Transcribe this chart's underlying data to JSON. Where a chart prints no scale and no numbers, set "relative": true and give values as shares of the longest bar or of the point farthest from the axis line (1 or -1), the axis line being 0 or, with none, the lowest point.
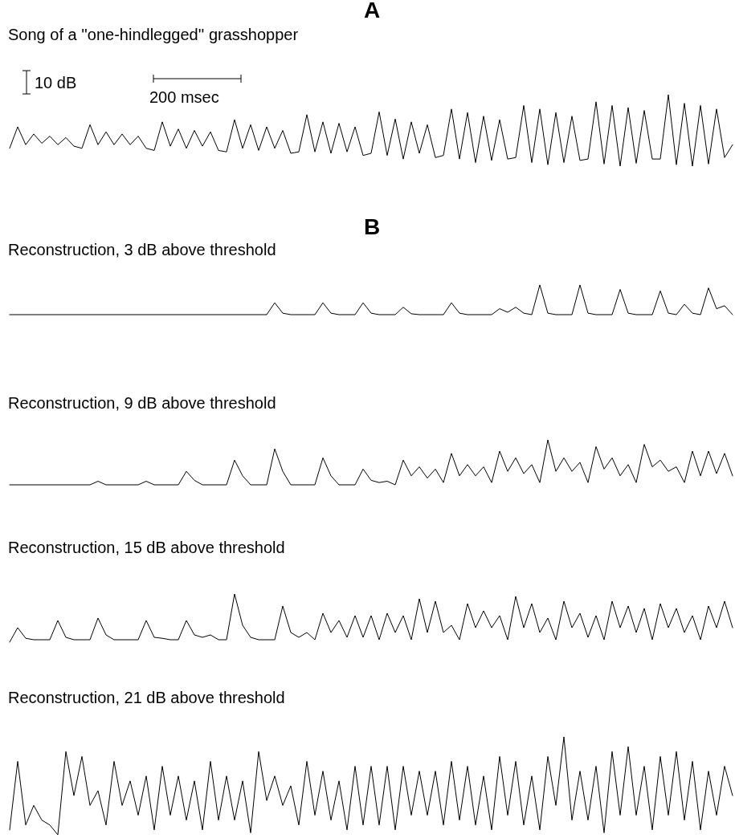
{
  "chart_data": [
    {
      "type": "line",
      "title": "A",
      "subtitle": "Song of a ''one-hindlegged'' grasshopper",
      "relative": true,
      "annotations": [
        "10 dB",
        "200 msec"
      ],
      "categories": [
        null,
        null,
        null,
        null,
        null,
        null,
        null,
        null,
        null,
        null,
        null,
        null,
        null,
        null,
        null,
        null,
        null,
        null,
        null,
        null,
        null,
        null,
        null,
        null,
        null,
        null,
        null,
        null,
        null,
        null,
        null,
        null,
        null,
        null,
        null,
        null,
        null,
        null,
        null,
        null,
        null,
        null,
        null,
        null,
        null,
        null,
        null,
        null,
        null,
        null,
        null,
        null,
        null,
        null,
        null,
        null,
        null,
        null,
        null,
        null,
        null,
        null,
        null,
        null,
        null,
        null,
        null,
        null,
        null,
        null,
        null,
        null,
        null,
        null,
        null,
        null,
        null,
        null,
        null,
        null,
        null,
        null,
        null,
        null,
        null,
        null,
        null,
        null,
        null,
        null,
        null
      ],
      "series": [
        {
          "color": "#000000",
          "values": [
            0.25,
            0.55,
            0.3,
            0.45,
            0.32,
            0.42,
            0.3,
            0.4,
            0.28,
            0.25,
            0.58,
            0.3,
            0.48,
            0.3,
            0.45,
            0.3,
            0.42,
            0.25,
            0.22,
            0.62,
            0.28,
            0.52,
            0.25,
            0.5,
            0.28,
            0.48,
            0.22,
            0.2,
            0.65,
            0.25,
            0.58,
            0.22,
            0.55,
            0.25,
            0.5,
            0.18,
            0.2,
            0.72,
            0.2,
            0.62,
            0.18,
            0.6,
            0.2,
            0.55,
            0.15,
            0.18,
            0.76,
            0.15,
            0.66,
            0.1,
            0.62,
            0.18,
            0.58,
            0.12,
            0.15,
            0.8,
            0.1,
            0.75,
            0.05,
            0.7,
            0.08,
            0.65,
            0.1,
            0.12,
            0.85,
            0.05,
            0.8,
            0.02,
            0.75,
            0.05,
            0.7,
            0.08,
            0.1,
            0.9,
            0.03,
            0.85,
            0.0,
            0.82,
            0.04,
            0.78,
            0.1,
            0.1,
            1.0,
            0.02,
            0.88,
            0.0,
            0.85,
            0.03,
            0.8,
            0.12,
            0.3
          ]
        }
      ]
    },
    {
      "type": "line",
      "title": "B",
      "subtitle": "Reconstruction, 3 dB above threshold",
      "relative": true,
      "categories": [
        null,
        null,
        null,
        null,
        null,
        null,
        null,
        null,
        null,
        null,
        null,
        null,
        null,
        null,
        null,
        null,
        null,
        null,
        null,
        null,
        null,
        null,
        null,
        null,
        null,
        null,
        null,
        null,
        null,
        null,
        null,
        null,
        null,
        null,
        null,
        null,
        null,
        null,
        null,
        null,
        null,
        null,
        null,
        null,
        null,
        null,
        null,
        null,
        null,
        null,
        null,
        null,
        null,
        null,
        null,
        null,
        null,
        null,
        null,
        null,
        null,
        null,
        null,
        null,
        null,
        null,
        null,
        null,
        null,
        null,
        null,
        null,
        null,
        null,
        null,
        null,
        null,
        null,
        null,
        null,
        null,
        null,
        null,
        null,
        null,
        null,
        null,
        null,
        null,
        null,
        null
      ],
      "series": [
        {
          "color": "#000000",
          "values": [
            0,
            0,
            0,
            0,
            0,
            0,
            0,
            0,
            0,
            0,
            0,
            0,
            0,
            0,
            0,
            0,
            0,
            0,
            0,
            0,
            0,
            0,
            0,
            0,
            0,
            0,
            0,
            0,
            0,
            0,
            0,
            0,
            0,
            0.4,
            0.05,
            0,
            0,
            0,
            0,
            0.4,
            0.05,
            0,
            0,
            0,
            0.4,
            0.05,
            0,
            0,
            0,
            0.25,
            0.03,
            0,
            0,
            0,
            0,
            0.4,
            0.05,
            0,
            0,
            0,
            0,
            0.2,
            0.08,
            0.25,
            0.05,
            0,
            1.0,
            0.05,
            0,
            0,
            0,
            1.0,
            0.05,
            0,
            0,
            0,
            0.85,
            0.05,
            0,
            0,
            0,
            0.8,
            0.05,
            0,
            0.35,
            0.05,
            0,
            0.9,
            0.2,
            0.3,
            0
          ]
        }
      ]
    },
    {
      "type": "line",
      "title": "Reconstruction, 9 dB above threshold",
      "relative": true,
      "categories": [
        null,
        null,
        null,
        null,
        null,
        null,
        null,
        null,
        null,
        null,
        null,
        null,
        null,
        null,
        null,
        null,
        null,
        null,
        null,
        null,
        null,
        null,
        null,
        null,
        null,
        null,
        null,
        null,
        null,
        null,
        null,
        null,
        null,
        null,
        null,
        null,
        null,
        null,
        null,
        null,
        null,
        null,
        null,
        null,
        null,
        null,
        null,
        null,
        null,
        null,
        null,
        null,
        null,
        null,
        null,
        null,
        null,
        null,
        null,
        null,
        null,
        null,
        null,
        null,
        null,
        null,
        null,
        null,
        null,
        null,
        null,
        null,
        null,
        null,
        null,
        null,
        null,
        null,
        null,
        null,
        null,
        null,
        null,
        null,
        null,
        null,
        null,
        null,
        null,
        null,
        null
      ],
      "series": [
        {
          "color": "#000000",
          "values": [
            0,
            0,
            0,
            0,
            0,
            0,
            0,
            0,
            0,
            0,
            0,
            0.08,
            0,
            0,
            0,
            0,
            0,
            0.08,
            0,
            0,
            0,
            0,
            0.3,
            0.1,
            0,
            0,
            0,
            0,
            0.55,
            0.2,
            0,
            0,
            0,
            0.8,
            0.3,
            0,
            0,
            0,
            0,
            0.6,
            0.2,
            0,
            0,
            0,
            0.35,
            0.1,
            0.05,
            0.08,
            0,
            0.55,
            0.2,
            0.4,
            0.15,
            0.35,
            0.05,
            0.7,
            0.2,
            0.45,
            0.2,
            0.4,
            0.05,
            0.75,
            0.3,
            0.6,
            0.25,
            0.45,
            0.05,
            1.0,
            0.3,
            0.6,
            0.3,
            0.5,
            0.05,
            0.85,
            0.35,
            0.6,
            0.2,
            0.45,
            0.05,
            0.9,
            0.4,
            0.55,
            0.3,
            0.4,
            0.05,
            0.75,
            0.2,
            0.75,
            0.25,
            0.7,
            0.2
          ]
        }
      ]
    },
    {
      "type": "line",
      "title": "Reconstruction, 15 dB above threshold",
      "relative": true,
      "categories": [
        null,
        null,
        null,
        null,
        null,
        null,
        null,
        null,
        null,
        null,
        null,
        null,
        null,
        null,
        null,
        null,
        null,
        null,
        null,
        null,
        null,
        null,
        null,
        null,
        null,
        null,
        null,
        null,
        null,
        null,
        null,
        null,
        null,
        null,
        null,
        null,
        null,
        null,
        null,
        null,
        null,
        null,
        null,
        null,
        null,
        null,
        null,
        null,
        null,
        null,
        null,
        null,
        null,
        null,
        null,
        null,
        null,
        null,
        null,
        null,
        null,
        null,
        null,
        null,
        null,
        null,
        null,
        null,
        null,
        null,
        null,
        null,
        null,
        null,
        null,
        null,
        null,
        null,
        null,
        null,
        null,
        null,
        null,
        null,
        null,
        null,
        null,
        null,
        null,
        null,
        null
      ],
      "series": [
        {
          "color": "#000000",
          "values": [
            0,
            0.3,
            0.08,
            0.05,
            0.05,
            0.05,
            0.45,
            0.1,
            0.05,
            0.05,
            0.05,
            0.5,
            0.15,
            0.05,
            0.05,
            0.05,
            0.05,
            0.45,
            0.1,
            0.08,
            0.05,
            0.05,
            0.45,
            0.15,
            0.1,
            0.15,
            0.05,
            0.05,
            1.0,
            0.35,
            0.1,
            0.05,
            0.05,
            0.05,
            0.75,
            0.2,
            0.1,
            0.2,
            0.05,
            0.6,
            0.2,
            0.45,
            0.1,
            0.55,
            0.1,
            0.55,
            0.05,
            0.6,
            0.2,
            0.55,
            0.05,
            0.9,
            0.2,
            0.85,
            0.2,
            0.35,
            0.05,
            0.8,
            0.3,
            0.65,
            0.3,
            0.55,
            0.05,
            0.95,
            0.3,
            0.8,
            0.2,
            0.5,
            0.05,
            0.85,
            0.3,
            0.6,
            0.1,
            0.55,
            0.05,
            0.85,
            0.3,
            0.75,
            0.2,
            0.7,
            0.05,
            0.8,
            0.3,
            0.7,
            0.2,
            0.55,
            0.05,
            0.75,
            0.3,
            0.85,
            0.3
          ]
        }
      ]
    },
    {
      "type": "line",
      "title": "Reconstruction, 21 dB above threshold",
      "relative": true,
      "categories": [
        null,
        null,
        null,
        null,
        null,
        null,
        null,
        null,
        null,
        null,
        null,
        null,
        null,
        null,
        null,
        null,
        null,
        null,
        null,
        null,
        null,
        null,
        null,
        null,
        null,
        null,
        null,
        null,
        null,
        null,
        null,
        null,
        null,
        null,
        null,
        null,
        null,
        null,
        null,
        null,
        null,
        null,
        null,
        null,
        null,
        null,
        null,
        null,
        null,
        null,
        null,
        null,
        null,
        null,
        null,
        null,
        null,
        null,
        null,
        null,
        null,
        null,
        null,
        null,
        null,
        null,
        null,
        null,
        null,
        null,
        null,
        null,
        null,
        null,
        null,
        null,
        null,
        null,
        null,
        null,
        null,
        null,
        null,
        null,
        null,
        null,
        null,
        null,
        null,
        null,
        null
      ],
      "series": [
        {
          "color": "#000000",
          "values": [
            0.05,
            0.75,
            0.1,
            0.3,
            0.15,
            0.1,
            0,
            0.85,
            0.4,
            0.8,
            0.3,
            0.45,
            0.1,
            0.75,
            0.3,
            0.55,
            0.2,
            0.6,
            0.05,
            0.7,
            0.2,
            0.6,
            0.15,
            0.55,
            0.05,
            0.75,
            0.15,
            0.6,
            0.15,
            0.55,
            0.02,
            0.85,
            0.35,
            0.6,
            0.3,
            0.5,
            0.1,
            0.75,
            0.2,
            0.65,
            0.15,
            0.55,
            0.05,
            0.7,
            0.1,
            0.7,
            0.1,
            0.7,
            0.05,
            0.7,
            0.2,
            0.65,
            0.2,
            0.65,
            0.1,
            0.75,
            0.15,
            0.7,
            0.1,
            0.6,
            0.05,
            0.8,
            0.2,
            0.75,
            0.1,
            0.6,
            0.05,
            0.8,
            0.3,
            1.0,
            0.15,
            0.65,
            0.15,
            0.7,
            0.02,
            0.85,
            0.2,
            0.9,
            0.2,
            0.7,
            0.05,
            0.8,
            0.2,
            0.85,
            0.15,
            0.75,
            0.05,
            0.65,
            0.2,
            0.7,
            0.4
          ]
        }
      ]
    }
  ]
}
